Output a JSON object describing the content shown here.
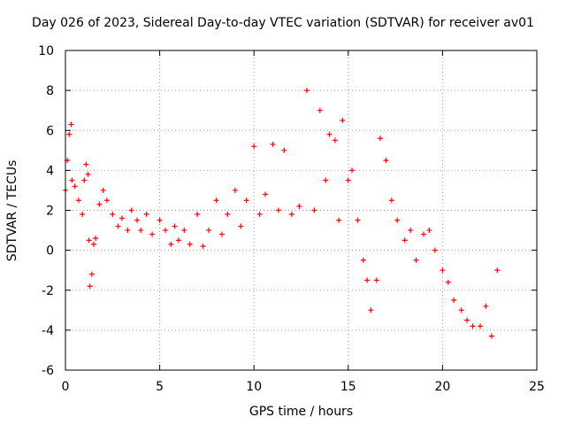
{
  "chart_data": {
    "type": "scatter",
    "title": "Day 026 of 2023, Sidereal Day-to-day VTEC variation (SDTVAR) for receiver av01",
    "xlabel": "GPS time / hours",
    "ylabel": "SDTVAR / TECUs",
    "xlim": [
      0,
      25
    ],
    "ylim": [
      -6,
      10
    ],
    "xticks": [
      0,
      5,
      10,
      15,
      20,
      25
    ],
    "yticks": [
      -6,
      -4,
      -2,
      0,
      2,
      4,
      6,
      8,
      10
    ],
    "grid": true,
    "marker": "+",
    "marker_color": "#ff0000",
    "series": [
      {
        "name": "SDTVAR",
        "x": [
          0.0,
          0.1,
          0.2,
          0.3,
          0.35,
          0.5,
          0.7,
          0.9,
          1.0,
          1.1,
          1.2,
          1.25,
          1.3,
          1.4,
          1.5,
          1.6,
          1.8,
          2.0,
          2.2,
          2.5,
          2.8,
          3.0,
          3.3,
          3.5,
          3.8,
          4.0,
          4.3,
          4.6,
          5.0,
          5.3,
          5.6,
          5.8,
          6.0,
          6.3,
          6.6,
          7.0,
          7.3,
          7.6,
          8.0,
          8.3,
          8.6,
          9.0,
          9.3,
          9.6,
          10.0,
          10.3,
          10.6,
          11.0,
          11.3,
          11.6,
          12.0,
          12.4,
          12.8,
          13.2,
          13.5,
          13.8,
          14.0,
          14.3,
          14.5,
          14.7,
          15.0,
          15.2,
          15.5,
          15.8,
          16.0,
          16.2,
          16.5,
          16.7,
          17.0,
          17.3,
          17.6,
          18.0,
          18.3,
          18.6,
          19.0,
          19.3,
          19.6,
          20.0,
          20.3,
          20.6,
          21.0,
          21.3,
          21.6,
          22.0,
          22.3,
          22.6,
          22.9
        ],
        "y": [
          3.0,
          4.5,
          5.8,
          6.3,
          3.5,
          3.2,
          2.5,
          1.8,
          3.5,
          4.3,
          3.8,
          0.5,
          -1.8,
          -1.2,
          0.3,
          0.6,
          2.3,
          3.0,
          2.5,
          1.8,
          1.2,
          1.6,
          1.0,
          2.0,
          1.5,
          1.0,
          1.8,
          0.8,
          1.5,
          1.0,
          0.3,
          1.2,
          0.5,
          1.0,
          0.3,
          1.8,
          0.2,
          1.0,
          2.5,
          0.8,
          1.8,
          3.0,
          1.2,
          2.5,
          5.2,
          1.8,
          2.8,
          5.3,
          2.0,
          5.0,
          1.8,
          2.2,
          8.0,
          2.0,
          7.0,
          3.5,
          5.8,
          5.5,
          1.5,
          6.5,
          3.5,
          4.0,
          1.5,
          -0.5,
          -1.5,
          -3.0,
          -1.5,
          5.6,
          4.5,
          2.5,
          1.5,
          0.5,
          1.0,
          -0.5,
          0.8,
          1.0,
          0.0,
          -1.0,
          -1.6,
          -2.5,
          -3.0,
          -3.5,
          -3.8,
          -3.8,
          -2.8,
          -4.3,
          -1.0
        ]
      }
    ]
  }
}
